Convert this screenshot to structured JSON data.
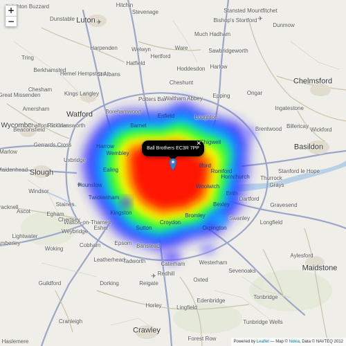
{
  "zoom": {
    "in_label": "+",
    "out_label": "−"
  },
  "popup": {
    "text": "Ball Brothers EC3R 7PP",
    "close_label": "✕"
  },
  "attribution": {
    "prefix": "Powered by ",
    "leaflet": "Leaflet",
    "middle": " — Map © ",
    "nokia": "Nokia",
    "suffix": ", Data © NAVTEQ 2012"
  },
  "colors": {
    "heat_red": "#ff0000",
    "heat_yellow": "#ffff00",
    "heat_green": "#00ff00",
    "heat_blue": "#0000ff",
    "road_motorway": "#9ba7c9",
    "popup_bg": "#000000",
    "marker": "#3a7ecf"
  },
  "places": {
    "city": [
      "Luton",
      "Watford",
      "Slough",
      "Basildon",
      "Chelmsford",
      "Maidstone",
      "Crawley"
    ],
    "towns": [
      "Dunstable",
      "Stevenage",
      "Hertford",
      "Harlow",
      "Epping",
      "Ongar",
      "Brentwood",
      "Romford",
      "Dartford",
      "Gravesend",
      "Sevenoaks",
      "Tonbridge",
      "Reigate",
      "Dorking",
      "Guildford",
      "Woking",
      "Staines",
      "Epsom",
      "Sutton",
      "Croydon",
      "Bromley",
      "Kingston",
      "Harpenden",
      "St Albans",
      "Hemel Hempstead",
      "Hatfield",
      "Hoddesdon",
      "Potters Bar",
      "Borehamwood",
      "Enfield",
      "Chesham",
      "Amersham",
      "High Wycombe",
      "Beaconsfield",
      "Gerrards Cross",
      "Uxbridge",
      "Maidenhead",
      "Windsor",
      "Ascot",
      "Bracknell",
      "Weybridge",
      "Cobham",
      "Leatherhead",
      "Redhill",
      "Oxted",
      "Westerham",
      "Swanley",
      "Orpington",
      "Thurrock",
      "Grays",
      "Tilbury",
      "Wickford",
      "Billericay",
      "Ingatestone",
      "Rayleigh",
      "Aylesford",
      "Edenbridge",
      "Tunbridge Wells",
      "Horley",
      "Gatwick",
      "Lingfield",
      "Cranleigh",
      "Dunmow",
      "Sawbridgeworth",
      "Bishop's Stortford",
      "Stansted Mountfitchet",
      "Much Hadham",
      "Ware",
      "Welwyn",
      "Knebworth",
      "Hitchin",
      "Toddington",
      "Leighton Buzzard",
      "Tring",
      "Berkhamsted",
      "Kings Langley",
      "Chalfont St Giles",
      "Rickmansworth",
      "Loughton",
      "Waltham Abbey",
      "Cheshunt",
      "Ilford",
      "Barking",
      "Chigwell",
      "Hornchurch",
      "Rainham",
      "Erith",
      "Bexley",
      "Sidcup",
      "Banstead",
      "Caterham",
      "Purley",
      "Walton-on-Thames",
      "Esher",
      "Egham",
      "Chertsey",
      "Sunbury",
      "Feltham",
      "Hounslow",
      "Richmond",
      "Wimbledon",
      "Greenwich",
      "Stratford",
      "Tottenham",
      "Edmonton",
      "Barnet",
      "Stanmore",
      "Harrow",
      "Ealing",
      "Southall",
      "Hayes",
      "West Drayton",
      "Iver",
      "Burnham",
      "Stoke Poges",
      "Farnham Common",
      "Marlow",
      "Bourne End",
      "Cookham",
      "Wargrave",
      "Twyford",
      "Wokingham",
      "Crowthorne",
      "Sandhurst",
      "Camberley",
      "Bagshot",
      "Lightwater",
      "Chobham",
      "West Byfleet",
      "Byfleet",
      "Ripley",
      "Send",
      "Shere",
      "Gomshall",
      "Holmwood",
      "Capel",
      "Newdigate",
      "Charlwood",
      "Smallfield",
      "Burstow",
      "Copthorne",
      "Crawley Down",
      "East Grinstead",
      "Forest Row",
      "Hartfield",
      "Withyham",
      "Crowborough",
      "Rotherfield",
      "Mayfield",
      "Wadhurst",
      "Lamberhurst",
      "Goudhurst",
      "Cranbrook",
      "Paddock Wood",
      "Yalding",
      "Wateringbury",
      "West Malling",
      "Snodland",
      "Larkfield",
      "Ditton",
      "East Malling",
      "Wrotham",
      "Borough Green",
      "Ightham",
      "Kemsing",
      "Otford",
      "Shoreham",
      "Eynsford",
      "Farningham",
      "Horton Kirby",
      "South Darenth",
      "Sutton-at-Hone",
      "Hawley",
      "Wilmington",
      "Joydens Wood",
      "Crayford",
      "Slade Green",
      "Northumberland Heath",
      "Belvedere",
      "Abbey Wood",
      "Thamesmead",
      "Plumstead",
      "Woolwich",
      "Charlton",
      "Blackheath",
      "Lewisham",
      "Catford",
      "Beckenham",
      "West Wickham",
      "Hayes (Kent)",
      "Keston",
      "Biggin Hill",
      "Tatsfield",
      "Limpsfield",
      "Godstone",
      "Bletchingley",
      "Nutfield",
      "Merstham",
      "Kingswood",
      "Tadworth",
      "Walton on the Hill",
      "Headley",
      "Mickleham",
      "Westhumble",
      "Ranmore",
      "Effingham",
      "Bookham",
      "Fetcham",
      "Ashtead",
      "Ewell",
      "Worcester Park",
      "Cheam",
      "Carshalton",
      "Wallington",
      "Beddington",
      "Mitcham",
      "Morden",
      "Merton",
      "Raynes Park",
      "New Malden",
      "Surbiton",
      "Tolworth",
      "Chessington",
      "Hook",
      "Claygate",
      "Hinchley Wood",
      "Thames Ditton",
      "East Molesey",
      "West Molesey",
      "Hampton",
      "Teddington",
      "Twickenham",
      "Isleworth",
      "Brentford",
      "Chiswick",
      "Hammersmith",
      "Fulham",
      "Putney",
      "Wandsworth",
      "Clapham",
      "Brixton",
      "Streatham",
      "Norbury",
      "Thornton Heath",
      "Selhurst",
      "South Norwood",
      "Penge",
      "Anerley",
      "Crystal Palace",
      "Sydenham",
      "Forest Hill",
      "Brockley",
      "New Cross",
      "Deptford",
      "Rotherhithe",
      "Bermondsey",
      "Southwark",
      "Lambeth",
      "Vauxhall",
      "Battersea",
      "Chelsea",
      "Kensington",
      "Notting Hill",
      "Paddington",
      "Marylebone",
      "Camden",
      "Islington",
      "Hackney",
      "Bow",
      "Poplar",
      "Canning Town",
      "West Ham",
      "East Ham",
      "Beckton",
      "Dagenham",
      "Upminster",
      "Rainham (Essex)",
      "Aveley",
      "South Ockendon",
      "Stifford",
      "Chadwell St Mary",
      "Stanford-le-Hope",
      "Corringham",
      "Pitsea",
      "Vange",
      "Laindon",
      "Langdon Hills",
      "Horndon",
      "Bulphan",
      "Orsett",
      "Herongate",
      "Hutton",
      "Shenfield",
      "Mountnessing",
      "Stock",
      "Margaretting",
      "Writtle",
      "Broomfield",
      "Great Baddow",
      "Danbury",
      "Hatfield Peverel",
      "Boreham",
      "Little Waltham",
      "Great Waltham",
      "Pleshey",
      "Good Easter",
      "High Roding",
      "Leaden Roding",
      "Abbess Roding",
      "Fyfield",
      "Chipping Ongar",
      "High Ongar",
      "Blackmore",
      "Doddinghurst",
      "Kelvedon Hatch",
      "Navestock",
      "Stapleford Abbotts",
      "Abridge",
      "Theydon Bois",
      "North Weald",
      "Toot Hill",
      "Moreton",
      "Matching",
      "Harlow Common",
      "Old Harlow",
      "Roydon",
      "Nazeing",
      "Broxbourne",
      "Wormley",
      "Turnford",
      "Goffs Oak",
      "Cuffley",
      "Northaw",
      "Brookmans Park",
      "Welham Green",
      "Colney Heath",
      "London Colney",
      "Shenley",
      "Radlett",
      "Elstree",
      "Bushey",
      "Oxhey",
      "Northwood",
      "Pinner",
      "Ruislip",
      "Ickenham",
      "Harefield",
      "Denham",
      "Chalfont St Peter",
      "Seer Green",
      "Jordans",
      "Coleshill",
      "Penn",
      "Tylers Green",
      "Loudwater",
      "Flackwell Heath",
      "Wooburn",
      "Little Marlow",
      "Medmenham",
      "Hambleden",
      "Henley",
      "Remenham",
      "Hurley",
      "Bisham",
      "Pinkneys Green",
      "Holyport",
      "Bray",
      "Dorney",
      "Eton",
      "Datchet",
      "Old Windsor",
      "Wraysbury",
      "Horton",
      "Colnbrook",
      "Stanwell",
      "Ashford",
      "Shepperton",
      "Laleham",
      "Thorpe",
      "Virginia Water",
      "Englefield Green",
      "Sunningdale",
      "Sunninghill",
      "Winkfield",
      "Warfield",
      "Binfield"
    ],
    "labels_on_map": [
      {
        "name": "Leighton Buzzard",
        "c": "town"
      },
      {
        "name": "Luton",
        "c": "city"
      },
      {
        "name": "Stevenage",
        "c": "town"
      },
      {
        "name": "Stansted Mountfitchet",
        "c": "town"
      },
      {
        "name": "Dunmow",
        "c": "town"
      },
      {
        "name": "Dunstable",
        "c": "town"
      },
      {
        "name": "Harpenden",
        "c": "town"
      },
      {
        "name": "Hertford",
        "c": "town"
      },
      {
        "name": "Much Hadham",
        "c": "town"
      },
      {
        "name": "Sawbridgeworth",
        "c": "town"
      },
      {
        "name": "Tring",
        "c": "town"
      },
      {
        "name": "Berkhamsted",
        "c": "town"
      },
      {
        "name": "Hemel Hempstead",
        "c": "town"
      },
      {
        "name": "St Albans",
        "c": "town"
      },
      {
        "name": "Hatfield",
        "c": "town"
      },
      {
        "name": "Hoddesdon",
        "c": "town"
      },
      {
        "name": "Harlow",
        "c": "town"
      },
      {
        "name": "Chelmsford",
        "c": "city"
      },
      {
        "name": "Chesham",
        "c": "town"
      },
      {
        "name": "Kings Langley",
        "c": "town"
      },
      {
        "name": "Potters Bar",
        "c": "town"
      },
      {
        "name": "Waltham Abbey",
        "c": "town"
      },
      {
        "name": "Epping",
        "c": "town"
      },
      {
        "name": "Ongar",
        "c": "town"
      },
      {
        "name": "Ingatestone",
        "c": "town"
      },
      {
        "name": "Great Missenden",
        "c": "town"
      },
      {
        "name": "Watford",
        "c": "city"
      },
      {
        "name": "Borehamwood",
        "c": "town"
      },
      {
        "name": "Enfield",
        "c": "heat"
      },
      {
        "name": "Loughton",
        "c": "town"
      },
      {
        "name": "Brentwood",
        "c": "town"
      },
      {
        "name": "Billericay",
        "c": "town"
      },
      {
        "name": "Wickford",
        "c": "town"
      },
      {
        "name": "High Wycombe",
        "c": "big"
      },
      {
        "name": "Beaconsfield",
        "c": "town"
      },
      {
        "name": "Chalfont St Giles",
        "c": "town"
      },
      {
        "name": "Basildon",
        "c": "city"
      },
      {
        "name": "Gerrards Cross",
        "c": "town"
      },
      {
        "name": "Harrow",
        "c": "heat"
      },
      {
        "name": "Marlow",
        "c": "town"
      },
      {
        "name": "Maidenhead",
        "c": "town"
      },
      {
        "name": "Slough",
        "c": "city"
      },
      {
        "name": "Thurrock",
        "c": "town"
      },
      {
        "name": "Stanford le Hope",
        "c": "town"
      },
      {
        "name": "Grays",
        "c": "town"
      },
      {
        "name": "Windsor",
        "c": "town"
      },
      {
        "name": "Staines",
        "c": "town"
      },
      {
        "name": "Dartford",
        "c": "town"
      },
      {
        "name": "Gravesend",
        "c": "town"
      },
      {
        "name": "Ascot",
        "c": "town"
      },
      {
        "name": "Bracknell",
        "c": "town"
      },
      {
        "name": "Croydon",
        "c": "heat"
      },
      {
        "name": "Bromley",
        "c": "heat"
      },
      {
        "name": "Swanley",
        "c": "town"
      },
      {
        "name": "Longfield",
        "c": "town"
      },
      {
        "name": "Camberley",
        "c": "town"
      },
      {
        "name": "Lightwater",
        "c": "town"
      },
      {
        "name": "Walton-on-Thames",
        "c": "town"
      },
      {
        "name": "Weybridge",
        "c": "town"
      },
      {
        "name": "Woking",
        "c": "town"
      },
      {
        "name": "Cobham",
        "c": "town"
      },
      {
        "name": "Epsom",
        "c": "town"
      },
      {
        "name": "Caterham",
        "c": "town"
      },
      {
        "name": "Westerham",
        "c": "town"
      },
      {
        "name": "Sevenoaks",
        "c": "town"
      },
      {
        "name": "Aylesford",
        "c": "town"
      },
      {
        "name": "Maidstone",
        "c": "city"
      },
      {
        "name": "Leatherhead",
        "c": "town"
      },
      {
        "name": "Tadworth",
        "c": "town"
      },
      {
        "name": "Redhill",
        "c": "town"
      },
      {
        "name": "Oxted",
        "c": "town"
      },
      {
        "name": "Guildford",
        "c": "town"
      },
      {
        "name": "Dorking",
        "c": "town"
      },
      {
        "name": "Reigate",
        "c": "town"
      },
      {
        "name": "Edenbridge",
        "c": "town"
      },
      {
        "name": "Tonbridge",
        "c": "town"
      },
      {
        "name": "Horley",
        "c": "town"
      },
      {
        "name": "Lingfield",
        "c": "town"
      },
      {
        "name": "Tunbridge Wells",
        "c": "town"
      },
      {
        "name": "Cranleigh",
        "c": "town"
      },
      {
        "name": "Crawley",
        "c": "city"
      },
      {
        "name": "Forest Row",
        "c": "town"
      },
      {
        "name": "Haslemere",
        "c": "town"
      },
      {
        "name": "Kingston",
        "c": "heat"
      },
      {
        "name": "Sutton",
        "c": "heat"
      },
      {
        "name": "Romford",
        "c": "heat"
      },
      {
        "name": "Ilford",
        "c": "heat"
      },
      {
        "name": "Barnet",
        "c": "heat"
      },
      {
        "name": "Erith",
        "c": "heat"
      },
      {
        "name": "Woolwich",
        "c": "heat"
      },
      {
        "name": "Uxbridge",
        "c": "town"
      },
      {
        "name": "Rickmansworth",
        "c": "town"
      },
      {
        "name": "Amersham",
        "c": "town"
      },
      {
        "name": "Hitchin",
        "c": "town"
      },
      {
        "name": "Welwyn",
        "c": "town"
      },
      {
        "name": "Ware",
        "c": "town"
      },
      {
        "name": "Bishop's Stortford",
        "c": "town"
      },
      {
        "name": "Hornchurch",
        "c": "heat"
      },
      {
        "name": "Chigwell",
        "c": "heat"
      },
      {
        "name": "Cheshunt",
        "c": "town"
      },
      {
        "name": "Egham",
        "c": "town"
      },
      {
        "name": "Chertsey",
        "c": "town"
      },
      {
        "name": "Esher",
        "c": "town"
      },
      {
        "name": "Banstead",
        "c": "town"
      },
      {
        "name": "Orpington",
        "c": "heat"
      },
      {
        "name": "Bexley",
        "c": "heat"
      },
      {
        "name": "Twickenham",
        "c": "heat"
      },
      {
        "name": "Hounslow",
        "c": "heat"
      },
      {
        "name": "Ealing",
        "c": "heat"
      },
      {
        "name": "Wembley",
        "c": "heat"
      }
    ]
  }
}
